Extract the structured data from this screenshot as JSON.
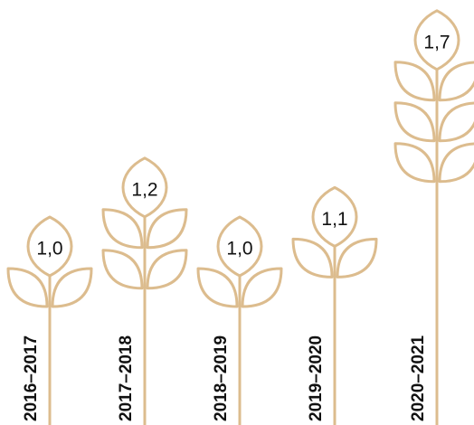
{
  "chart_data": {
    "type": "pictograph",
    "categories": [
      "2016–2017",
      "2017–2018",
      "2018–2019",
      "2019–2020",
      "2020–2021"
    ],
    "values": [
      1.0,
      1.2,
      1.0,
      1.1,
      1.7
    ],
    "value_labels": [
      "1,0",
      "1,2",
      "1,0",
      "1,1",
      "1,7"
    ],
    "color": "#dcbc8e"
  }
}
